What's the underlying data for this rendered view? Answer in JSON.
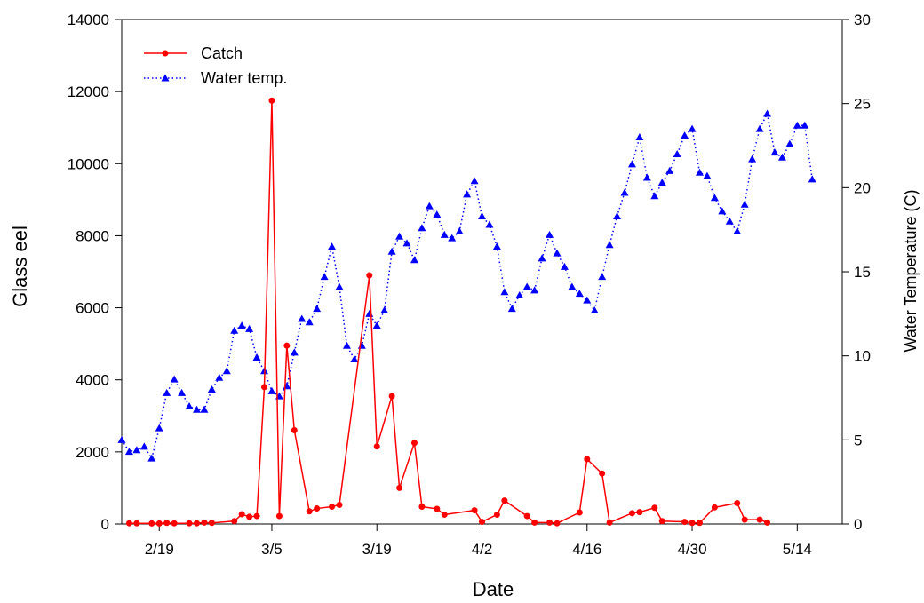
{
  "chart_data": {
    "type": "line",
    "xlabel": "Date",
    "ylabel": "Glass eel",
    "y2label": "Water Temperature (C)",
    "ylim": [
      0,
      14000
    ],
    "y2lim": [
      0,
      30
    ],
    "yticks": [
      0,
      2000,
      4000,
      6000,
      8000,
      10000,
      12000,
      14000
    ],
    "y2ticks": [
      0,
      5,
      10,
      15,
      20,
      25,
      30
    ],
    "xlim": [
      "2/14",
      "5/20"
    ],
    "xticks": [
      {
        "date": "2/19",
        "label": "2/19"
      },
      {
        "date": "3/5",
        "label": "3/5"
      },
      {
        "date": "3/19",
        "label": "3/19"
      },
      {
        "date": "4/2",
        "label": "4/2"
      },
      {
        "date": "4/16",
        "label": "4/16"
      },
      {
        "date": "4/30",
        "label": "4/30"
      },
      {
        "date": "5/14",
        "label": "5/14"
      }
    ],
    "legend": {
      "position": "top-left"
    },
    "series": [
      {
        "name": "Catch",
        "axis": "left",
        "color": "#ff0000",
        "line_style": "solid",
        "marker": "circle",
        "points": [
          [
            "2/15",
            20
          ],
          [
            "2/16",
            20
          ],
          [
            "2/18",
            15
          ],
          [
            "2/19",
            15
          ],
          [
            "2/20",
            30
          ],
          [
            "2/21",
            20
          ],
          [
            "2/23",
            20
          ],
          [
            "2/24",
            20
          ],
          [
            "2/25",
            40
          ],
          [
            "2/26",
            30
          ],
          [
            "2/29",
            80
          ],
          [
            "3/1",
            270
          ],
          [
            "3/2",
            200
          ],
          [
            "3/3",
            220
          ],
          [
            "3/4",
            3800
          ],
          [
            "3/5",
            11750
          ],
          [
            "3/6",
            220
          ],
          [
            "3/7",
            4950
          ],
          [
            "3/8",
            2600
          ],
          [
            "3/10",
            350
          ],
          [
            "3/11",
            430
          ],
          [
            "3/13",
            480
          ],
          [
            "3/14",
            530
          ],
          [
            "3/18",
            6900
          ],
          [
            "3/19",
            2150
          ],
          [
            "3/21",
            3550
          ],
          [
            "3/22",
            1000
          ],
          [
            "3/24",
            2250
          ],
          [
            "3/25",
            480
          ],
          [
            "3/27",
            420
          ],
          [
            "3/28",
            260
          ],
          [
            "4/1",
            380
          ],
          [
            "4/2",
            60
          ],
          [
            "4/4",
            260
          ],
          [
            "4/5",
            650
          ],
          [
            "4/8",
            220
          ],
          [
            "4/9",
            40
          ],
          [
            "4/11",
            40
          ],
          [
            "4/12",
            20
          ],
          [
            "4/15",
            320
          ],
          [
            "4/16",
            1800
          ],
          [
            "4/18",
            1400
          ],
          [
            "4/19",
            40
          ],
          [
            "4/22",
            300
          ],
          [
            "4/23",
            330
          ],
          [
            "4/25",
            450
          ],
          [
            "4/26",
            80
          ],
          [
            "4/29",
            60
          ],
          [
            "4/30",
            30
          ],
          [
            "5/1",
            30
          ],
          [
            "5/3",
            460
          ],
          [
            "5/6",
            580
          ],
          [
            "5/7",
            120
          ],
          [
            "5/9",
            120
          ],
          [
            "5/10",
            40
          ]
        ]
      },
      {
        "name": "Water temp.",
        "axis": "right",
        "color": "#0000ff",
        "line_style": "dotted",
        "marker": "triangle",
        "points": [
          [
            "2/14",
            5.0
          ],
          [
            "2/15",
            4.3
          ],
          [
            "2/16",
            4.4
          ],
          [
            "2/17",
            4.6
          ],
          [
            "2/18",
            3.9
          ],
          [
            "2/19",
            5.7
          ],
          [
            "2/20",
            7.8
          ],
          [
            "2/21",
            8.6
          ],
          [
            "2/22",
            7.8
          ],
          [
            "2/23",
            7.0
          ],
          [
            "2/24",
            6.8
          ],
          [
            "2/25",
            6.8
          ],
          [
            "2/26",
            8.0
          ],
          [
            "2/27",
            8.7
          ],
          [
            "2/28",
            9.1
          ],
          [
            "2/29",
            11.5
          ],
          [
            "3/1",
            11.8
          ],
          [
            "3/2",
            11.6
          ],
          [
            "3/3",
            9.9
          ],
          [
            "3/4",
            9.1
          ],
          [
            "3/5",
            7.9
          ],
          [
            "3/6",
            7.6
          ],
          [
            "3/7",
            8.2
          ],
          [
            "3/8",
            10.2
          ],
          [
            "3/9",
            12.2
          ],
          [
            "3/10",
            12.0
          ],
          [
            "3/11",
            12.8
          ],
          [
            "3/12",
            14.7
          ],
          [
            "3/13",
            16.5
          ],
          [
            "3/14",
            14.1
          ],
          [
            "3/15",
            10.6
          ],
          [
            "3/16",
            9.8
          ],
          [
            "3/17",
            10.6
          ],
          [
            "3/18",
            12.5
          ],
          [
            "3/19",
            11.8
          ],
          [
            "3/20",
            12.7
          ],
          [
            "3/21",
            16.2
          ],
          [
            "3/22",
            17.1
          ],
          [
            "3/23",
            16.7
          ],
          [
            "3/24",
            15.7
          ],
          [
            "3/25",
            17.6
          ],
          [
            "3/26",
            18.9
          ],
          [
            "3/27",
            18.4
          ],
          [
            "3/28",
            17.2
          ],
          [
            "3/29",
            17.0
          ],
          [
            "3/30",
            17.4
          ],
          [
            "3/31",
            19.6
          ],
          [
            "4/1",
            20.4
          ],
          [
            "4/2",
            18.3
          ],
          [
            "4/3",
            17.8
          ],
          [
            "4/4",
            16.5
          ],
          [
            "4/5",
            13.8
          ],
          [
            "4/6",
            12.8
          ],
          [
            "4/7",
            13.6
          ],
          [
            "4/8",
            14.1
          ],
          [
            "4/9",
            13.9
          ],
          [
            "4/10",
            15.8
          ],
          [
            "4/11",
            17.2
          ],
          [
            "4/12",
            16.1
          ],
          [
            "4/13",
            15.3
          ],
          [
            "4/14",
            14.1
          ],
          [
            "4/15",
            13.7
          ],
          [
            "4/16",
            13.3
          ],
          [
            "4/17",
            12.7
          ],
          [
            "4/18",
            14.7
          ],
          [
            "4/19",
            16.6
          ],
          [
            "4/20",
            18.3
          ],
          [
            "4/21",
            19.7
          ],
          [
            "4/22",
            21.4
          ],
          [
            "4/23",
            23.0
          ],
          [
            "4/24",
            20.6
          ],
          [
            "4/25",
            19.5
          ],
          [
            "4/26",
            20.3
          ],
          [
            "4/27",
            21.0
          ],
          [
            "4/28",
            22.0
          ],
          [
            "4/29",
            23.1
          ],
          [
            "4/30",
            23.5
          ],
          [
            "5/1",
            20.9
          ],
          [
            "5/2",
            20.7
          ],
          [
            "5/3",
            19.4
          ],
          [
            "5/4",
            18.6
          ],
          [
            "5/5",
            18.0
          ],
          [
            "5/6",
            17.4
          ],
          [
            "5/7",
            19.0
          ],
          [
            "5/8",
            21.7
          ],
          [
            "5/9",
            23.5
          ],
          [
            "5/10",
            24.4
          ],
          [
            "5/11",
            22.1
          ],
          [
            "5/12",
            21.8
          ],
          [
            "5/13",
            22.6
          ],
          [
            "5/14",
            23.7
          ],
          [
            "5/15",
            23.7
          ],
          [
            "5/16",
            20.5
          ]
        ]
      }
    ]
  }
}
